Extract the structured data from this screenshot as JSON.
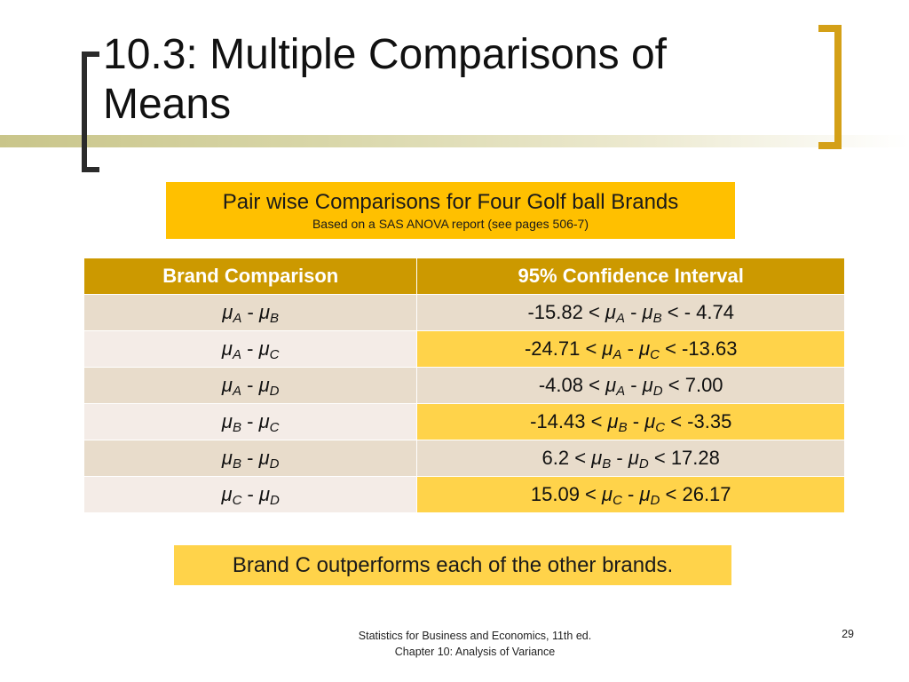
{
  "slide": {
    "title": "10.3: Multiple Comparisons of Means",
    "subtitle_main": "Pair wise Comparisons for Four Golf ball Brands",
    "subtitle_sub": "Based on  a SAS ANOVA report (see pages 506-7)",
    "conclusion": "Brand C outperforms each of the other brands.",
    "footer_line1": "Statistics for Business and Economics, 11th ed.",
    "footer_line2": "Chapter 10: Analysis of Variance",
    "page_number": "29",
    "accent_color": "#ffc000",
    "header_color": "#cc9900"
  },
  "table": {
    "headers": [
      "Brand Comparison",
      "95% Confidence Interval"
    ],
    "rows": [
      {
        "comparison": {
          "a": "A",
          "b": "B"
        },
        "interval": {
          "lower": "-15.82",
          "a": "A",
          "b": "B",
          "upper": "- 4.74"
        },
        "highlighted": false
      },
      {
        "comparison": {
          "a": "A",
          "b": "C"
        },
        "interval": {
          "lower": "-24.71",
          "a": "A",
          "b": "C",
          "upper": "-13.63"
        },
        "highlighted": true
      },
      {
        "comparison": {
          "a": "A",
          "b": "D"
        },
        "interval": {
          "lower": "-4.08",
          "a": "A",
          "b": "D",
          "upper": "7.00"
        },
        "highlighted": false
      },
      {
        "comparison": {
          "a": "B",
          "b": "C"
        },
        "interval": {
          "lower": "-14.43",
          "a": "B",
          "b": "C",
          "upper": "-3.35"
        },
        "highlighted": true
      },
      {
        "comparison": {
          "a": "B",
          "b": "D"
        },
        "interval": {
          "lower": "6.2",
          "a": "B",
          "b": "D",
          "upper": "17.28"
        },
        "highlighted": false
      },
      {
        "comparison": {
          "a": "C",
          "b": "D"
        },
        "interval": {
          "lower": "15.09",
          "a": "C",
          "b": "D",
          "upper": "26.17"
        },
        "highlighted": true
      }
    ]
  }
}
